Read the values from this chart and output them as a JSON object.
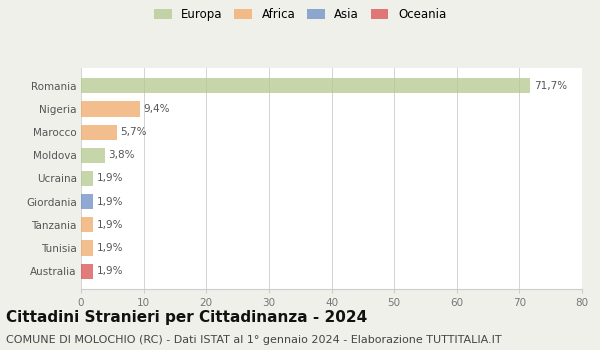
{
  "categories": [
    "Romania",
    "Nigeria",
    "Marocco",
    "Moldova",
    "Ucraina",
    "Giordania",
    "Tanzania",
    "Tunisia",
    "Australia"
  ],
  "values": [
    71.7,
    9.4,
    5.7,
    3.8,
    1.9,
    1.9,
    1.9,
    1.9,
    1.9
  ],
  "labels": [
    "71,7%",
    "9,4%",
    "5,7%",
    "3,8%",
    "1,9%",
    "1,9%",
    "1,9%",
    "1,9%",
    "1,9%"
  ],
  "colors": [
    "#b5c98e",
    "#f0a868",
    "#f0a868",
    "#b5c98e",
    "#b5c98e",
    "#6b8dc4",
    "#f0a868",
    "#f0a868",
    "#d94f4f"
  ],
  "legend_labels": [
    "Europa",
    "Africa",
    "Asia",
    "Oceania"
  ],
  "legend_colors": [
    "#b5c98e",
    "#f0a868",
    "#6b8dc4",
    "#d94f4f"
  ],
  "xlim": [
    0,
    80
  ],
  "xticks": [
    0,
    10,
    20,
    30,
    40,
    50,
    60,
    70,
    80
  ],
  "title": "Cittadini Stranieri per Cittadinanza - 2024",
  "subtitle": "COMUNE DI MOLOCHIO (RC) - Dati ISTAT al 1° gennaio 2024 - Elaborazione TUTTITALIA.IT",
  "background_color": "#f0f0eb",
  "plot_bg_color": "#ffffff",
  "bar_alpha": 0.75,
  "title_fontsize": 11,
  "subtitle_fontsize": 8,
  "label_fontsize": 7.5,
  "tick_fontsize": 7.5,
  "legend_fontsize": 8.5
}
